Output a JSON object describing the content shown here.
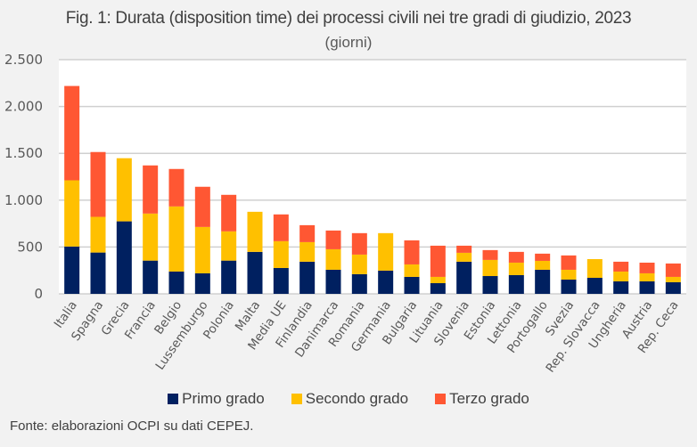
{
  "chart_data": {
    "type": "bar",
    "stacked": true,
    "title": "Fig. 1: Durata (disposition time) dei processi civili nei tre gradi di giudizio, 2023",
    "subtitle": "(giorni)",
    "xlabel": "",
    "ylabel": "",
    "ylim": [
      0,
      2500
    ],
    "yticks": [
      0,
      500,
      1000,
      1500,
      2000,
      2500
    ],
    "ytick_labels": [
      "0",
      "500",
      "1.000",
      "1.500",
      "2.000",
      "2.500"
    ],
    "grid": true,
    "legend_position": "bottom",
    "categories": [
      "Italia",
      "Spagna",
      "Grecia",
      "Francia",
      "Belgio",
      "Lussemburgo",
      "Polonia",
      "Malta",
      "Media UE",
      "Finlandia",
      "Danimarca",
      "Romania",
      "Germania",
      "Bulgaria",
      "Lituania",
      "Slovenia",
      "Estonia",
      "Lettonia",
      "Portogallo",
      "Svezia",
      "Rep. Slovacca",
      "Ungheria",
      "Austria",
      "Rep. Ceca"
    ],
    "series": [
      {
        "name": "Primo grado",
        "color": "#002060",
        "values": [
          505,
          441,
          774,
          355,
          238,
          219,
          355,
          448,
          276,
          343,
          257,
          210,
          248,
          181,
          114,
          343,
          190,
          200,
          257,
          152,
          171,
          133,
          133,
          124
        ]
      },
      {
        "name": "Secondo grado",
        "color": "#FFC000",
        "values": [
          707,
          381,
          674,
          502,
          695,
          495,
          312,
          428,
          286,
          209,
          219,
          209,
          400,
          133,
          67,
          95,
          172,
          133,
          95,
          105,
          200,
          105,
          86,
          57
        ]
      },
      {
        "name": "Terzo grado",
        "color": "#FF5733",
        "values": [
          1007,
          692,
          0,
          514,
          400,
          429,
          390,
          0,
          286,
          181,
          200,
          229,
          0,
          257,
          333,
          76,
          105,
          115,
          77,
          153,
          0,
          105,
          114,
          143
        ]
      }
    ]
  },
  "source": "Fonte: elaborazioni OCPI su dati CEPEJ."
}
